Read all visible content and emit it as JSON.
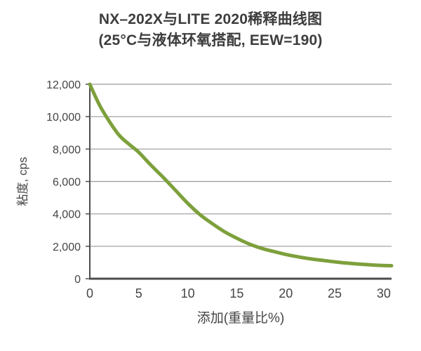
{
  "title": {
    "line1": "NX–202X与LITE 2020稀释曲线图",
    "line2": "(25°C与液体环氧搭配, EEW=190)"
  },
  "chart_data": {
    "type": "line",
    "title": "NX–202X与LITE 2020稀释曲线图",
    "subtitle": "(25°C与液体环氧搭配, EEW=190)",
    "xlabel": "添加(重量比%)",
    "ylabel": "粘度, cps",
    "xlim": [
      0,
      30.8
    ],
    "ylim": [
      0,
      12000
    ],
    "grid": "horizontal-only",
    "legend": "none",
    "x_ticks": [
      {
        "v": 0,
        "label": "0"
      },
      {
        "v": 5,
        "label": "5"
      },
      {
        "v": 10,
        "label": "10"
      },
      {
        "v": 15,
        "label": "15"
      },
      {
        "v": 20,
        "label": "20"
      },
      {
        "v": 25,
        "label": "25"
      },
      {
        "v": 30,
        "label": "30"
      }
    ],
    "y_ticks": [
      {
        "v": 0,
        "label": "0"
      },
      {
        "v": 2000,
        "label": "2,000"
      },
      {
        "v": 4000,
        "label": "4,000"
      },
      {
        "v": 6000,
        "label": "6,000"
      },
      {
        "v": 8000,
        "label": "8,000"
      },
      {
        "v": 10000,
        "label": "10,000"
      },
      {
        "v": 12000,
        "label": "12,000"
      }
    ],
    "series": [
      {
        "color": "#7da03c",
        "points": [
          [
            0,
            12000
          ],
          [
            1,
            10700
          ],
          [
            2,
            9700
          ],
          [
            3,
            8850
          ],
          [
            4,
            8300
          ],
          [
            5,
            7800
          ],
          [
            6.25,
            7000
          ],
          [
            7.5,
            6250
          ],
          [
            8.75,
            5450
          ],
          [
            10,
            4650
          ],
          [
            11.25,
            3950
          ],
          [
            12.5,
            3400
          ],
          [
            13.75,
            2900
          ],
          [
            15,
            2500
          ],
          [
            16.25,
            2150
          ],
          [
            17.5,
            1880
          ],
          [
            18.75,
            1680
          ],
          [
            20,
            1500
          ],
          [
            21.25,
            1350
          ],
          [
            22.5,
            1230
          ],
          [
            23.75,
            1130
          ],
          [
            25,
            1040
          ],
          [
            26.25,
            960
          ],
          [
            27.5,
            900
          ],
          [
            28.75,
            850
          ],
          [
            30,
            810
          ],
          [
            30.8,
            800
          ]
        ]
      }
    ]
  },
  "colors": {
    "background": "#ffffff",
    "curve": "#7da03c",
    "gridline": "#9a9a9a",
    "axis": "#4d4d4d",
    "text": "#454545",
    "title_text": "#3d3d3d"
  }
}
